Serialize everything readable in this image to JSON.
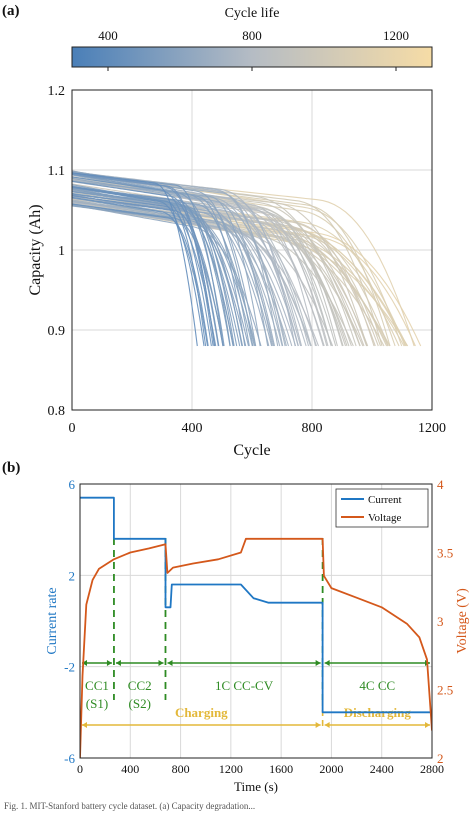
{
  "figure": {
    "panel_a_label": "(a)",
    "panel_b_label": "(b)",
    "caption": "Fig. 1. MIT-Stanford battery cycle dataset. (a) Capacity degradation..."
  },
  "chart_data": [
    {
      "type": "line",
      "panel": "(a)",
      "title": "",
      "xlabel": "Cycle",
      "ylabel": "Capacity (Ah)",
      "xlim": [
        0,
        1200
      ],
      "ylim": [
        0.8,
        1.2
      ],
      "xticks": [
        "0",
        "400",
        "800",
        "1200"
      ],
      "yticks": [
        "0.8",
        "0.9",
        "1",
        "1.1",
        "1.2"
      ],
      "grid": true,
      "colorbar": {
        "label": "Cycle life",
        "ticks": [
          "400",
          "800",
          "1200"
        ],
        "range": [
          300,
          1300
        ],
        "color_low": "#4a7fb8",
        "color_high": "#f6dca6"
      },
      "family": {
        "n_curves": 110,
        "cycle_life_min": 430,
        "cycle_life_max": 1150,
        "start_capacity_min": 1.055,
        "start_capacity_max": 1.1,
        "end_capacity": 0.88
      }
    },
    {
      "type": "line",
      "panel": "(b)",
      "title": "",
      "xlabel": "Time (s)",
      "ylabel_left": "Current rate",
      "ylabel_right": "Voltage (V)",
      "xlim": [
        0,
        2800
      ],
      "ylim_left": [
        -6,
        6
      ],
      "ylim_right": [
        2,
        4
      ],
      "xticks": [
        "0",
        "400",
        "800",
        "1200",
        "1600",
        "2000",
        "2400",
        "2800"
      ],
      "yticks_left": [
        "-6",
        "-2",
        "2",
        "6"
      ],
      "yticks_right": [
        "2",
        "2.5",
        "3",
        "3.5",
        "4"
      ],
      "grid": true,
      "legend": {
        "placement": "top-right",
        "entries": [
          "Current",
          "Voltage"
        ]
      },
      "series": [
        {
          "name": "Current",
          "color": "#1f77c4",
          "points": [
            [
              0,
              5.4
            ],
            [
              270,
              5.4
            ],
            [
              270,
              3.6
            ],
            [
              680,
              3.6
            ],
            [
              680,
              0.6
            ],
            [
              720,
              0.6
            ],
            [
              730,
              1.6
            ],
            [
              1280,
              1.6
            ],
            [
              1380,
              1.0
            ],
            [
              1500,
              0.8
            ],
            [
              1930,
              0.8
            ],
            [
              1930,
              -4.0
            ],
            [
              2800,
              -4.0
            ]
          ]
        },
        {
          "name": "Voltage",
          "color": "#d4581b",
          "points": [
            [
              0,
              2.0
            ],
            [
              20,
              2.6
            ],
            [
              50,
              3.12
            ],
            [
              100,
              3.3
            ],
            [
              150,
              3.38
            ],
            [
              270,
              3.45
            ],
            [
              400,
              3.5
            ],
            [
              550,
              3.53
            ],
            [
              680,
              3.56
            ],
            [
              695,
              3.35
            ],
            [
              740,
              3.39
            ],
            [
              900,
              3.42
            ],
            [
              1100,
              3.45
            ],
            [
              1280,
              3.5
            ],
            [
              1320,
              3.6
            ],
            [
              1930,
              3.6
            ],
            [
              1940,
              3.33
            ],
            [
              2000,
              3.24
            ],
            [
              2200,
              3.17
            ],
            [
              2400,
              3.1
            ],
            [
              2600,
              2.98
            ],
            [
              2700,
              2.88
            ],
            [
              2760,
              2.72
            ],
            [
              2800,
              2.2
            ]
          ]
        }
      ],
      "segments": [
        {
          "label_line1": "CC1",
          "label_line2": "(S1)",
          "from": 0,
          "to": 270
        },
        {
          "label_line1": "CC2",
          "label_line2": "(S2)",
          "from": 270,
          "to": 680
        },
        {
          "label_line1": "1C CC-CV",
          "label_line2": "",
          "from": 680,
          "to": 1930
        },
        {
          "label_line1": "4C CC",
          "label_line2": "",
          "from": 1930,
          "to": 2800
        }
      ],
      "phases": [
        {
          "label": "Charging",
          "from": 0,
          "to": 1930
        },
        {
          "label": "Discharging",
          "from": 1930,
          "to": 2800
        }
      ],
      "segment_color": "#2e8b23",
      "phase_color": "#e3b83a"
    }
  ]
}
